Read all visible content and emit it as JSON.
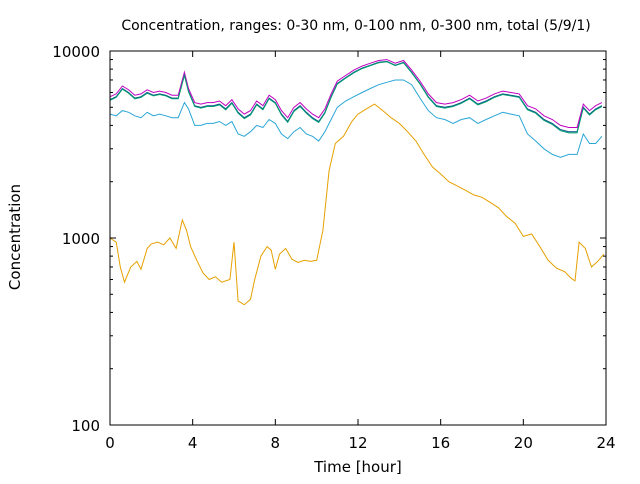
{
  "chart_data": {
    "type": "line",
    "title": "Concentration, ranges: 0-30 nm, 0-100 nm, 0-300 nm, total (5/9/1)",
    "xlabel": "Time [hour]",
    "ylabel": "Concentration",
    "xlim": [
      0,
      24
    ],
    "ylim": [
      100,
      10000
    ],
    "y_scale": "log",
    "grid": false,
    "legend": "none",
    "x_ticks": [
      0,
      4,
      8,
      12,
      16,
      20,
      24
    ],
    "x_tick_labels": [
      "0",
      "4",
      "8",
      "12",
      "16",
      "20",
      "24"
    ],
    "y_ticks": [
      100,
      1000,
      10000
    ],
    "y_tick_labels": [
      "100",
      "1000",
      "10000"
    ],
    "series": [
      {
        "color": "#e6a000",
        "x": [
          0,
          0.3,
          0.5,
          0.7,
          1.0,
          1.3,
          1.5,
          1.8,
          2.0,
          2.3,
          2.6,
          2.9,
          3.2,
          3.5,
          3.7,
          3.9,
          4.2,
          4.5,
          4.8,
          5.1,
          5.4,
          5.8,
          6.0,
          6.2,
          6.5,
          6.8,
          7.0,
          7.3,
          7.6,
          7.8,
          8.0,
          8.2,
          8.5,
          8.8,
          9.1,
          9.4,
          9.7,
          10.0,
          10.3,
          10.6,
          10.9,
          11.3,
          11.7,
          12.0,
          12.4,
          12.8,
          13.2,
          13.6,
          14.0,
          14.4,
          14.8,
          15.2,
          15.6,
          16.0,
          16.4,
          16.8,
          17.2,
          17.6,
          18.0,
          18.4,
          18.8,
          19.2,
          19.6,
          20.0,
          20.4,
          20.8,
          21.2,
          21.6,
          22.0,
          22.3,
          22.5,
          22.7,
          23.0,
          23.3,
          23.6,
          23.9
        ],
        "values": [
          1000,
          950,
          700,
          580,
          700,
          750,
          680,
          880,
          930,
          950,
          920,
          1000,
          880,
          1250,
          1100,
          900,
          760,
          650,
          600,
          620,
          580,
          600,
          950,
          460,
          440,
          470,
          600,
          800,
          900,
          860,
          680,
          820,
          880,
          770,
          740,
          760,
          750,
          760,
          1100,
          2300,
          3200,
          3500,
          4200,
          4600,
          4900,
          5200,
          4800,
          4400,
          4100,
          3700,
          3300,
          2800,
          2400,
          2200,
          2000,
          1900,
          1800,
          1700,
          1650,
          1550,
          1450,
          1300,
          1200,
          1020,
          1050,
          900,
          760,
          690,
          660,
          610,
          590,
          950,
          880,
          700,
          750,
          820
        ]
      },
      {
        "color": "#2aa6d6",
        "x": [
          0,
          0.3,
          0.6,
          0.9,
          1.2,
          1.5,
          1.8,
          2.1,
          2.4,
          2.7,
          3.0,
          3.3,
          3.6,
          3.8,
          4.1,
          4.4,
          4.7,
          5.0,
          5.3,
          5.6,
          5.9,
          6.2,
          6.5,
          6.8,
          7.1,
          7.4,
          7.7,
          8.0,
          8.3,
          8.6,
          8.9,
          9.2,
          9.5,
          9.8,
          10.1,
          10.4,
          10.7,
          11.0,
          11.4,
          11.8,
          12.2,
          12.6,
          13.0,
          13.4,
          13.8,
          14.2,
          14.6,
          15.0,
          15.4,
          15.8,
          16.2,
          16.6,
          17.0,
          17.4,
          17.8,
          18.2,
          18.6,
          19.0,
          19.4,
          19.8,
          20.2,
          20.6,
          21.0,
          21.4,
          21.8,
          22.2,
          22.6,
          22.9,
          23.2,
          23.5,
          23.8
        ],
        "values": [
          4600,
          4500,
          4800,
          4700,
          4500,
          4400,
          4700,
          4500,
          4600,
          4500,
          4400,
          4400,
          5300,
          4900,
          4000,
          4000,
          4100,
          4100,
          4200,
          4000,
          4200,
          3600,
          3500,
          3700,
          4000,
          3900,
          4300,
          4100,
          3600,
          3400,
          3700,
          3900,
          3600,
          3500,
          3300,
          3700,
          4300,
          5000,
          5400,
          5700,
          6000,
          6300,
          6600,
          6800,
          7000,
          7000,
          6600,
          5600,
          4800,
          4400,
          4300,
          4100,
          4300,
          4400,
          4100,
          4300,
          4500,
          4700,
          4600,
          4500,
          3600,
          3300,
          3000,
          2800,
          2700,
          2800,
          2800,
          3600,
          3200,
          3200,
          3500
        ]
      },
      {
        "color": "#0b4f8a",
        "x": [
          0,
          0.3,
          0.6,
          0.9,
          1.2,
          1.5,
          1.8,
          2.1,
          2.4,
          2.7,
          3.0,
          3.3,
          3.6,
          3.8,
          4.1,
          4.4,
          4.7,
          5.0,
          5.3,
          5.6,
          5.9,
          6.2,
          6.5,
          6.8,
          7.1,
          7.4,
          7.7,
          8.0,
          8.3,
          8.6,
          8.9,
          9.2,
          9.5,
          9.8,
          10.1,
          10.4,
          10.7,
          11.0,
          11.4,
          11.8,
          12.2,
          12.6,
          13.0,
          13.4,
          13.8,
          14.2,
          14.6,
          15.0,
          15.4,
          15.8,
          16.2,
          16.6,
          17.0,
          17.4,
          17.8,
          18.2,
          18.6,
          19.0,
          19.4,
          19.8,
          20.2,
          20.6,
          21.0,
          21.4,
          21.8,
          22.2,
          22.6,
          22.9,
          23.2,
          23.5,
          23.8
        ],
        "values": [
          5500,
          5700,
          6300,
          6000,
          5600,
          5700,
          6000,
          5800,
          5900,
          5800,
          5600,
          5600,
          7500,
          6100,
          5100,
          5000,
          5100,
          5100,
          5200,
          4900,
          5300,
          4700,
          4400,
          4600,
          5200,
          4900,
          5600,
          5300,
          4600,
          4200,
          4800,
          5100,
          4700,
          4400,
          4200,
          4700,
          5700,
          6700,
          7200,
          7700,
          8100,
          8400,
          8700,
          8800,
          8400,
          8700,
          7700,
          6700,
          5700,
          5100,
          5000,
          5100,
          5300,
          5600,
          5200,
          5400,
          5700,
          5900,
          5800,
          5700,
          4900,
          4700,
          4300,
          4100,
          3800,
          3700,
          3700,
          5000,
          4600,
          4900,
          5100
        ]
      },
      {
        "color": "#c000c0",
        "x": [
          0,
          0.3,
          0.6,
          0.9,
          1.2,
          1.5,
          1.8,
          2.1,
          2.4,
          2.7,
          3.0,
          3.3,
          3.6,
          3.8,
          4.1,
          4.4,
          4.7,
          5.0,
          5.3,
          5.6,
          5.9,
          6.2,
          6.5,
          6.8,
          7.1,
          7.4,
          7.7,
          8.0,
          8.3,
          8.6,
          8.9,
          9.2,
          9.5,
          9.8,
          10.1,
          10.4,
          10.7,
          11.0,
          11.4,
          11.8,
          12.2,
          12.6,
          13.0,
          13.4,
          13.8,
          14.2,
          14.6,
          15.0,
          15.4,
          15.8,
          16.2,
          16.6,
          17.0,
          17.4,
          17.8,
          18.2,
          18.6,
          19.0,
          19.4,
          19.8,
          20.2,
          20.6,
          21.0,
          21.4,
          21.8,
          22.2,
          22.6,
          22.9,
          23.2,
          23.5,
          23.8
        ],
        "values": [
          5700,
          5900,
          6500,
          6200,
          5800,
          5900,
          6200,
          6000,
          6100,
          6000,
          5800,
          5800,
          7700,
          6300,
          5300,
          5200,
          5300,
          5300,
          5400,
          5100,
          5500,
          4900,
          4600,
          4800,
          5400,
          5100,
          5800,
          5500,
          4800,
          4400,
          5000,
          5300,
          4900,
          4600,
          4400,
          4900,
          5900,
          6900,
          7400,
          7900,
          8300,
          8600,
          8900,
          9000,
          8600,
          8900,
          7900,
          6900,
          5900,
          5300,
          5200,
          5300,
          5500,
          5800,
          5400,
          5600,
          5900,
          6100,
          6000,
          5900,
          5100,
          4900,
          4500,
          4300,
          4000,
          3900,
          3900,
          5200,
          4800,
          5100,
          5300
        ]
      },
      {
        "color": "#009e73",
        "x": [
          0,
          0.3,
          0.6,
          0.9,
          1.2,
          1.5,
          1.8,
          2.1,
          2.4,
          2.7,
          3.0,
          3.3,
          3.6,
          3.8,
          4.1,
          4.4,
          4.7,
          5.0,
          5.3,
          5.6,
          5.9,
          6.2,
          6.5,
          6.8,
          7.1,
          7.4,
          7.7,
          8.0,
          8.3,
          8.6,
          8.9,
          9.2,
          9.5,
          9.8,
          10.1,
          10.4,
          10.7,
          11.0,
          11.4,
          11.8,
          12.2,
          12.6,
          13.0,
          13.4,
          13.8,
          14.2,
          14.6,
          15.0,
          15.4,
          15.8,
          16.2,
          16.6,
          17.0,
          17.4,
          17.8,
          18.2,
          18.6,
          19.0,
          19.4,
          19.8,
          20.2,
          20.6,
          21.0,
          21.4,
          21.8,
          22.2,
          22.6,
          22.9,
          23.2,
          23.5,
          23.8
        ],
        "values": [
          5450,
          5650,
          6250,
          5950,
          5550,
          5650,
          5950,
          5750,
          5850,
          5750,
          5550,
          5550,
          7400,
          6050,
          5050,
          4950,
          5050,
          5050,
          5150,
          4850,
          5250,
          4650,
          4350,
          4550,
          5150,
          4850,
          5550,
          5250,
          4550,
          4150,
          4750,
          5050,
          4650,
          4350,
          4150,
          4650,
          5650,
          6650,
          7150,
          7650,
          8050,
          8350,
          8650,
          8750,
          8350,
          8650,
          7650,
          6650,
          5650,
          5050,
          4950,
          5050,
          5250,
          5550,
          5150,
          5350,
          5650,
          5850,
          5750,
          5650,
          4850,
          4650,
          4250,
          4050,
          3750,
          3650,
          3650,
          4950,
          4550,
          4850,
          5050
        ]
      }
    ]
  }
}
